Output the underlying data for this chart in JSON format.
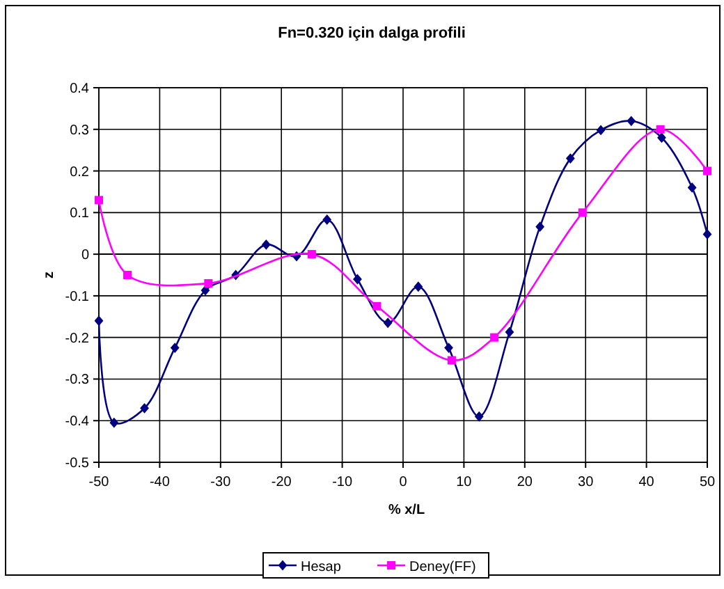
{
  "chart_data": {
    "type": "line",
    "title": "Fn=0.320 için dalga profili",
    "xlabel": "% x/L",
    "ylabel": "z",
    "xlim": [
      -50,
      50
    ],
    "xticks": [
      -50,
      -40,
      -30,
      -20,
      -10,
      0,
      10,
      20,
      30,
      40,
      50
    ],
    "ylim": [
      -0.5,
      0.4
    ],
    "yticks": [
      -0.5,
      -0.4,
      -0.3,
      -0.2,
      -0.1,
      0,
      0.1,
      0.2,
      0.3,
      0.4
    ],
    "grid": true,
    "legend": "bottom",
    "series": [
      {
        "name": "Hesap",
        "color": "#000080",
        "marker": "diamond",
        "x": [
          -50,
          -47.5,
          -42.5,
          -37.5,
          -32.5,
          -27.5,
          -22.5,
          -17.5,
          -12.5,
          -7.5,
          -2.5,
          2.5,
          7.5,
          12.5,
          17.5,
          22.5,
          27.5,
          32.5,
          37.5,
          42.5,
          47.5,
          50
        ],
        "values": [
          -0.16,
          -0.405,
          -0.37,
          -0.225,
          -0.087,
          -0.05,
          0.023,
          -0.005,
          0.083,
          -0.06,
          -0.165,
          -0.078,
          -0.225,
          -0.39,
          -0.187,
          0.066,
          0.23,
          0.298,
          0.32,
          0.28,
          0.16,
          0.048
        ]
      },
      {
        "name": "Deney(FF)",
        "color": "#ff00ff",
        "marker": "square",
        "x": [
          -50,
          -45.3,
          -32,
          -15,
          -4.3,
          8,
          15,
          29.5,
          42.3,
          50
        ],
        "values": [
          0.13,
          -0.05,
          -0.07,
          0,
          -0.125,
          -0.255,
          -0.2,
          0.1,
          0.3,
          0.2
        ]
      }
    ]
  }
}
